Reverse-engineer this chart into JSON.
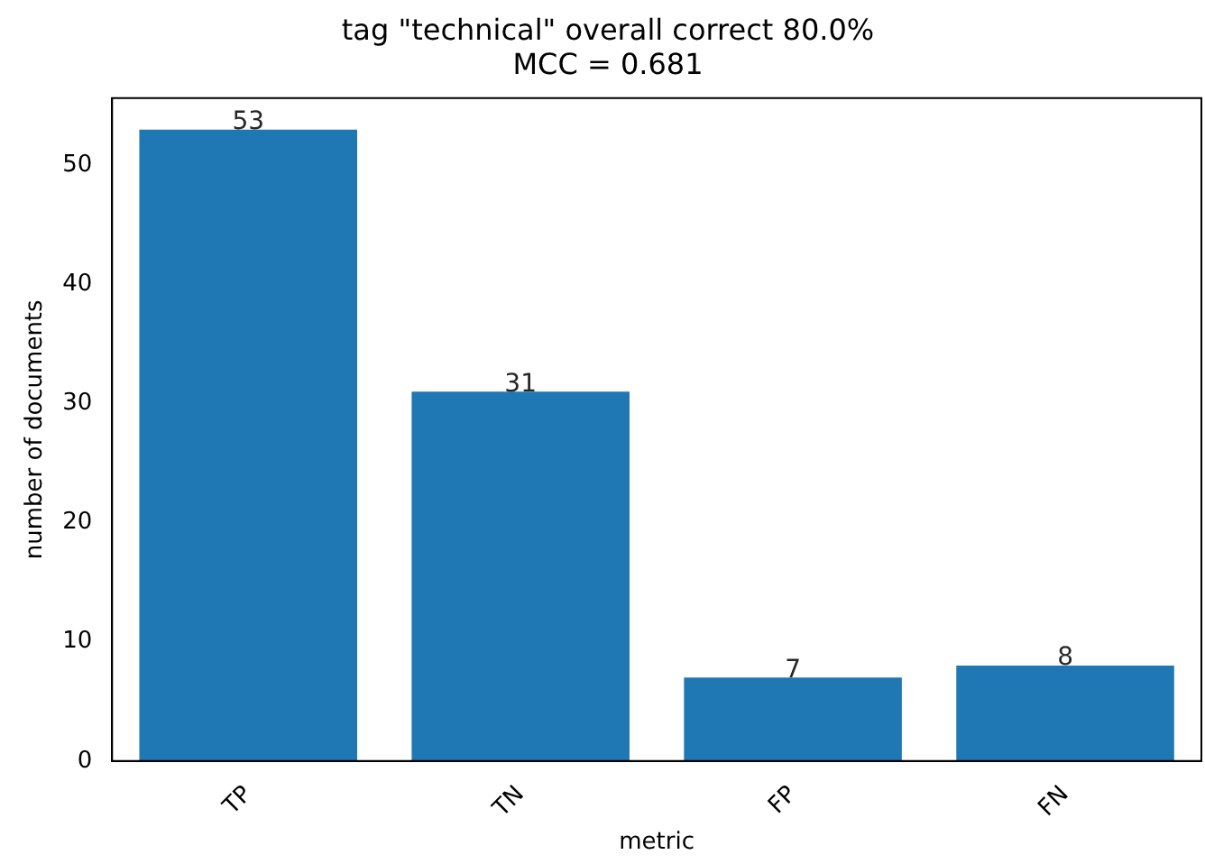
{
  "chart_data": {
    "type": "bar",
    "title": "tag \"technical\" overall correct 80.0%\nMCC = 0.681",
    "xlabel": "metric",
    "ylabel": "number of documents",
    "categories": [
      "TP",
      "TN",
      "FP",
      "FN"
    ],
    "values": [
      53,
      31,
      7,
      8
    ],
    "color": "#1f77b4",
    "ylim": [
      0,
      55.65
    ],
    "yticks": [
      0,
      10,
      20,
      30,
      40,
      50
    ],
    "grid": false,
    "legend": false,
    "data_labels": true
  }
}
